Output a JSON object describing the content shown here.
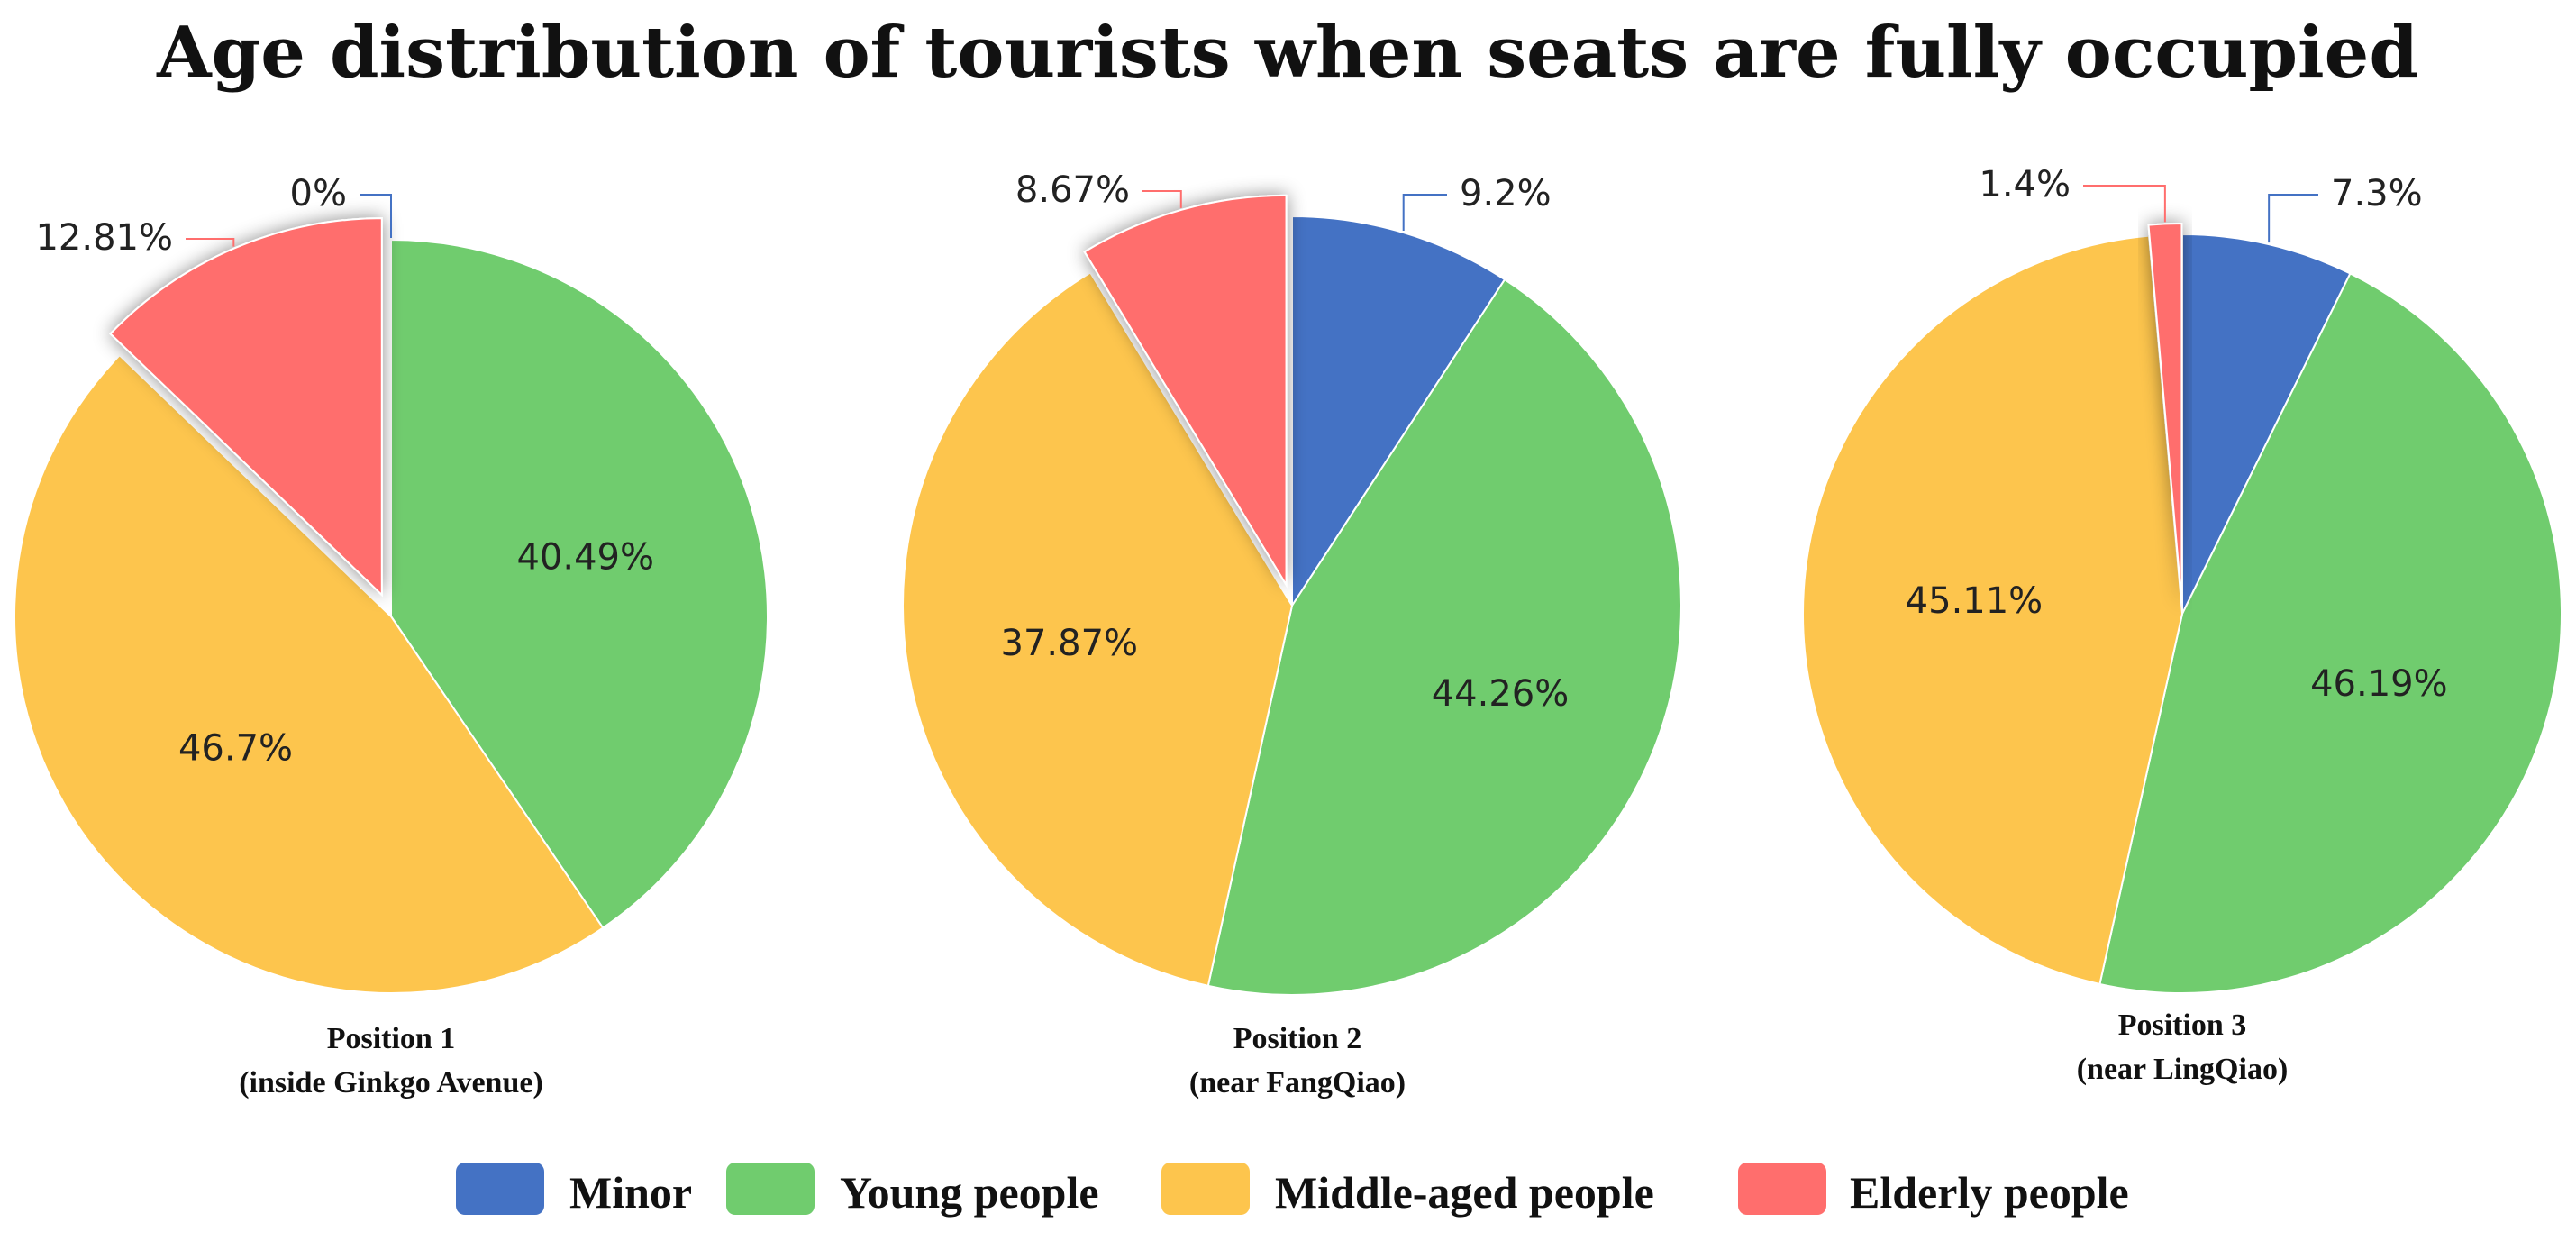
{
  "chart_data": {
    "type": "pie",
    "title": "Age distribution of tourists when seats are fully occupied",
    "legend_position": "bottom",
    "legend": [
      {
        "name": "Minor",
        "color": "#4472C4"
      },
      {
        "name": "Young people",
        "color": "#70CC6E"
      },
      {
        "name": "Middle-aged people",
        "color": "#FDC54D"
      },
      {
        "name": "Elderly people",
        "color": "#FF6E6D"
      }
    ],
    "pies": [
      {
        "caption_line1": "Position 1",
        "caption_line2": "(inside Ginkgo Avenue)",
        "slices": [
          {
            "name": "Minor",
            "value": 0,
            "label": "0%"
          },
          {
            "name": "Young people",
            "value": 40.49,
            "label": "40.49%"
          },
          {
            "name": "Middle-aged people",
            "value": 46.7,
            "label": "46.7%"
          },
          {
            "name": "Elderly people",
            "value": 12.81,
            "label": "12.81%"
          }
        ]
      },
      {
        "caption_line1": "Position 2",
        "caption_line2": "(near FangQiao)",
        "slices": [
          {
            "name": "Minor",
            "value": 9.2,
            "label": "9.2%"
          },
          {
            "name": "Young people",
            "value": 44.26,
            "label": "44.26%"
          },
          {
            "name": "Middle-aged people",
            "value": 37.87,
            "label": "37.87%"
          },
          {
            "name": "Elderly people",
            "value": 8.67,
            "label": "8.67%"
          }
        ]
      },
      {
        "caption_line1": "Position 3",
        "caption_line2": "(near LingQiao)",
        "slices": [
          {
            "name": "Minor",
            "value": 7.3,
            "label": "7.3%"
          },
          {
            "name": "Young people",
            "value": 46.19,
            "label": "46.19%"
          },
          {
            "name": "Middle-aged people",
            "value": 45.11,
            "label": "45.11%"
          },
          {
            "name": "Elderly people",
            "value": 1.4,
            "label": "1.4%"
          }
        ]
      }
    ]
  }
}
